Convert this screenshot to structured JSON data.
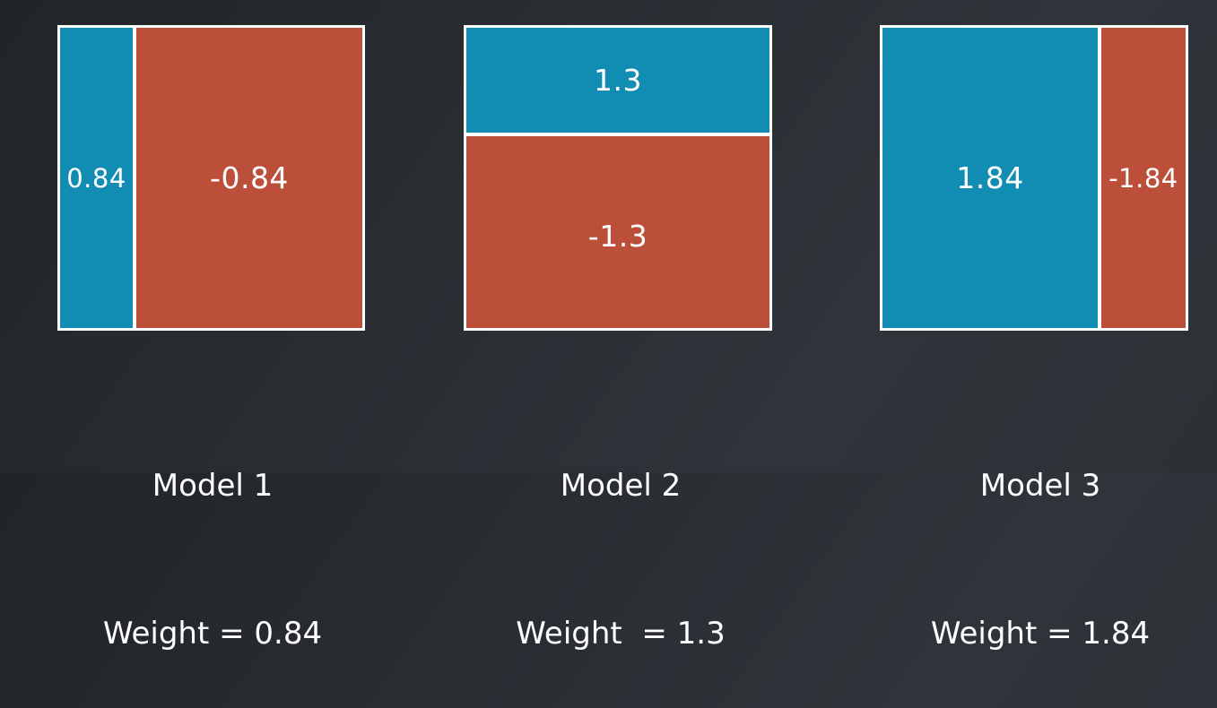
{
  "models": [
    {
      "name": "Model 1",
      "weight_label": "Weight = 0.84",
      "regions": [
        {
          "label": "0.84",
          "color": "#118db4"
        },
        {
          "label": "-0.84",
          "color": "#bc4f3a"
        }
      ]
    },
    {
      "name": "Model 2",
      "weight_label": "Weight  = 1.3",
      "regions": [
        {
          "label": "1.3",
          "color": "#118db4"
        },
        {
          "label": "-1.3",
          "color": "#bc4f3a"
        }
      ]
    },
    {
      "name": "Model 3",
      "weight_label": "Weight = 1.84",
      "regions": [
        {
          "label": "1.84",
          "color": "#118db4"
        },
        {
          "label": "-1.84",
          "color": "#bc4f3a"
        }
      ]
    }
  ],
  "colors": {
    "positive_region": "#118db4",
    "negative_region": "#bc4f3a",
    "border": "#ffffff"
  }
}
